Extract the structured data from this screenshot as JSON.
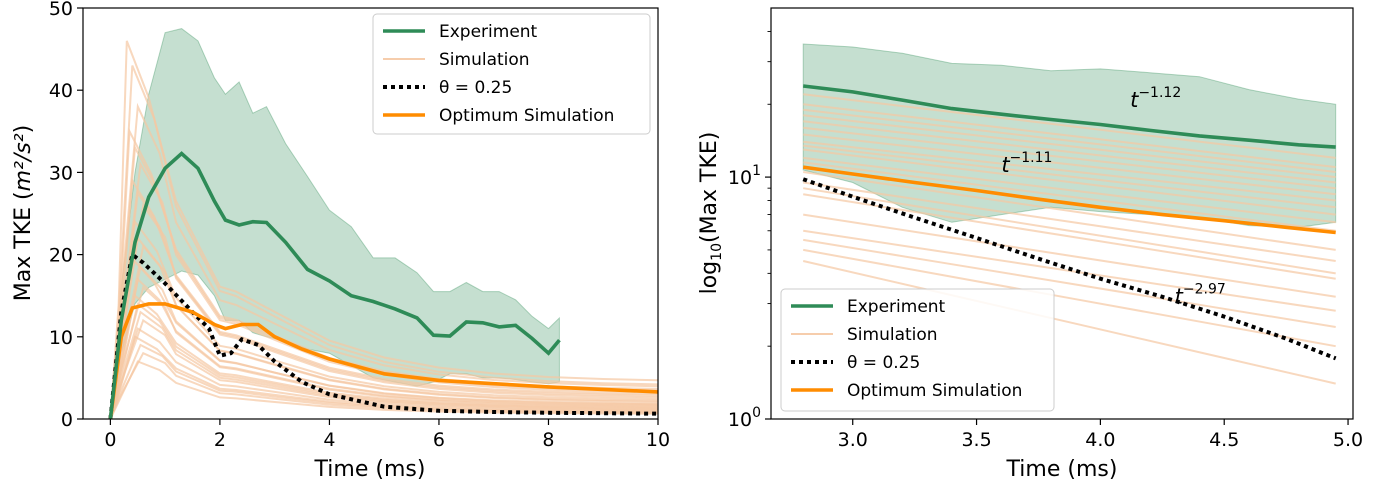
{
  "colors": {
    "experiment": "#2e8b57",
    "band": "#2e8b57",
    "simulation": "#f5c8a3",
    "theta": "#000000",
    "optimum": "#ff8c00"
  },
  "chart_data": [
    {
      "type": "line",
      "xlabel": "Time (ms)",
      "ylabel_text": "Max TKE (",
      "ylabel_unit": "m²/s²",
      "ylabel_close": ")",
      "xlim": [
        -0.5,
        10
      ],
      "ylim": [
        0,
        50
      ],
      "xticks": [
        0,
        2,
        4,
        6,
        8,
        10
      ],
      "yticks": [
        0,
        10,
        20,
        30,
        40,
        50
      ],
      "legend_position": "top-right",
      "legend": [
        {
          "key": "experiment",
          "label": "Experiment"
        },
        {
          "key": "simulation",
          "label": "Simulation"
        },
        {
          "key": "theta",
          "label": "θ = 0.25"
        },
        {
          "key": "optimum",
          "label": "Optimum Simulation"
        }
      ],
      "experiment": {
        "x": [
          0,
          0.2,
          0.45,
          0.7,
          1.0,
          1.3,
          1.6,
          1.9,
          2.1,
          2.35,
          2.6,
          2.85,
          3.2,
          3.6,
          4.0,
          4.4,
          4.8,
          5.2,
          5.6,
          5.9,
          6.2,
          6.5,
          6.8,
          7.1,
          7.4,
          7.7,
          8.0,
          8.2
        ],
        "y": [
          0,
          12,
          21.5,
          27,
          30.5,
          32.3,
          30.5,
          26.5,
          24.2,
          23.6,
          24,
          23.9,
          21.5,
          18.2,
          16.8,
          15,
          14.3,
          13.4,
          12.3,
          10.2,
          10.1,
          11.8,
          11.7,
          11.2,
          11.4,
          9.8,
          8,
          9.6
        ]
      },
      "band": {
        "x": [
          0,
          0.2,
          0.45,
          0.7,
          1.0,
          1.3,
          1.6,
          1.9,
          2.1,
          2.35,
          2.6,
          2.85,
          3.2,
          3.6,
          4.0,
          4.4,
          4.8,
          5.2,
          5.6,
          5.9,
          6.2,
          6.5,
          6.8,
          7.1,
          7.4,
          7.7,
          8.0,
          8.2
        ],
        "upper": [
          0,
          16,
          30,
          39.5,
          47,
          47.5,
          46,
          41.5,
          39.5,
          41,
          37.2,
          38,
          33.5,
          29.5,
          25.4,
          23.4,
          19.6,
          19.6,
          17.8,
          15.5,
          15.5,
          16.6,
          15.5,
          15.5,
          14.5,
          12.5,
          11,
          12.3
        ],
        "lower": [
          0,
          8,
          14,
          16,
          17,
          18,
          17.5,
          15,
          12,
          12,
          10.5,
          10,
          9.5,
          8.5,
          8,
          6.5,
          5,
          4.5,
          4,
          4.5,
          5.5,
          5.5,
          5,
          5,
          4.8,
          4.5,
          4.3,
          4.5
        ]
      },
      "theta": {
        "x": [
          0,
          0.2,
          0.4,
          0.6,
          1.0,
          1.5,
          1.8,
          2.0,
          2.2,
          2.4,
          2.7,
          3.0,
          3.5,
          4.0,
          5.0,
          6.0,
          7.0,
          8.0,
          9.0,
          10.0
        ],
        "y": [
          0,
          13,
          20,
          19,
          16.5,
          13,
          11,
          7.7,
          8,
          9.7,
          9,
          7,
          4.5,
          3,
          1.5,
          1,
          0.85,
          0.75,
          0.7,
          0.65
        ]
      },
      "optimum": {
        "x": [
          0,
          0.2,
          0.4,
          0.7,
          1.0,
          1.5,
          1.9,
          2.1,
          2.4,
          2.7,
          3.0,
          3.5,
          4.0,
          5.0,
          6.0,
          7.0,
          8.0,
          9.0,
          10.0
        ],
        "y": [
          0,
          10,
          13.5,
          14,
          14,
          13,
          11.5,
          11,
          11.5,
          11.5,
          10,
          8.5,
          7.3,
          5.5,
          4.7,
          4.3,
          3.9,
          3.6,
          3.3
        ]
      },
      "simulation_peaks": [
        46,
        43,
        38,
        35,
        33,
        31,
        29,
        27.5,
        26,
        24,
        22,
        21,
        19.5,
        18.5,
        17,
        16,
        15,
        14,
        13,
        12,
        11,
        10,
        9,
        8,
        7
      ],
      "simulation_peak_time": [
        0.3,
        0.4,
        0.5,
        0.35,
        0.45,
        0.55,
        0.4,
        0.5,
        0.6,
        0.45,
        0.5,
        0.6,
        0.4,
        0.55,
        0.5,
        0.6,
        0.45,
        0.5,
        0.55,
        0.6,
        0.5,
        0.45,
        0.55,
        0.6,
        0.5
      ],
      "simulation_end": [
        4.5,
        4.0,
        3.8,
        3.5,
        3.3,
        3.1,
        2.9,
        2.7,
        2.5,
        2.3,
        2.1,
        2.0,
        1.8,
        1.7,
        1.6,
        1.5,
        1.4,
        1.3,
        1.2,
        1.1,
        1.0,
        0.9,
        0.8,
        0.7,
        0.6
      ]
    },
    {
      "type": "line",
      "xlabel": "Time (ms)",
      "ylabel_base": "log",
      "ylabel_sub": "10",
      "ylabel_rest": "(Max TKE)",
      "xlim": [
        2.67,
        5.02
      ],
      "ylim": [
        1,
        50
      ],
      "log_y": true,
      "xticks": [
        3.0,
        3.5,
        4.0,
        4.5,
        5.0
      ],
      "xtick_labels": [
        "3.0",
        "3.5",
        "4.0",
        "4.5",
        "5.0"
      ],
      "yticks": [
        1,
        10
      ],
      "ytick_base": "10",
      "ytick_exps": [
        "0",
        "1"
      ],
      "legend_position": "bottom-left",
      "legend": [
        {
          "key": "experiment",
          "label": "Experiment"
        },
        {
          "key": "simulation",
          "label": "Simulation"
        },
        {
          "key": "theta",
          "label": "θ = 0.25"
        },
        {
          "key": "optimum",
          "label": "Optimum Simulation"
        }
      ],
      "annotations": [
        {
          "base": "t",
          "exp": "−1.12",
          "x": 4.12,
          "y": 19.5
        },
        {
          "base": "t",
          "exp": "−1.11",
          "x": 3.6,
          "y": 10.5
        },
        {
          "base": "t",
          "exp": "−2.97",
          "x": 4.3,
          "y": 3.0
        }
      ],
      "experiment": {
        "x": [
          2.8,
          3.0,
          3.2,
          3.4,
          3.6,
          3.8,
          4.0,
          4.2,
          4.4,
          4.6,
          4.8,
          4.95
        ],
        "y": [
          23.8,
          22.5,
          20.8,
          19.2,
          18.2,
          17.3,
          16.5,
          15.6,
          14.8,
          14.2,
          13.6,
          13.3
        ]
      },
      "band": {
        "x": [
          2.8,
          3.0,
          3.2,
          3.4,
          3.6,
          3.8,
          4.0,
          4.2,
          4.4,
          4.6,
          4.8,
          4.95
        ],
        "upper": [
          35.5,
          34.5,
          32.5,
          29.5,
          29,
          27.5,
          28,
          27,
          26,
          23,
          21,
          20
        ],
        "lower": [
          10.7,
          9.5,
          7.5,
          6.5,
          7.0,
          7.5,
          7.2,
          7.0,
          6.8,
          6.3,
          6.2,
          6.5
        ]
      },
      "theta": {
        "x": [
          2.8,
          3.0,
          3.25,
          3.5,
          3.75,
          4.0,
          4.25,
          4.5,
          4.75,
          4.95
        ],
        "y": [
          9.8,
          8.3,
          6.8,
          5.6,
          4.6,
          3.8,
          3.2,
          2.65,
          2.15,
          1.78
        ]
      },
      "optimum": {
        "x": [
          2.8,
          3.0,
          3.25,
          3.5,
          3.75,
          4.0,
          4.25,
          4.5,
          4.75,
          4.95
        ],
        "y": [
          11.0,
          10.3,
          9.5,
          8.8,
          8.1,
          7.5,
          7.0,
          6.6,
          6.2,
          5.9
        ]
      },
      "simulation_start": [
        22,
        20,
        19,
        18,
        17,
        16,
        15,
        14,
        13.5,
        13,
        12,
        11.5,
        10.5,
        9.5,
        9,
        8.5,
        7,
        6,
        5.5,
        5,
        4.5
      ],
      "simulation_end": [
        12,
        11,
        10.5,
        10,
        9.5,
        9,
        8.5,
        8,
        7.5,
        7,
        6.5,
        6,
        5,
        4.5,
        4,
        3.8,
        3.2,
        2.8,
        2.4,
        2.0,
        1.4
      ]
    }
  ]
}
